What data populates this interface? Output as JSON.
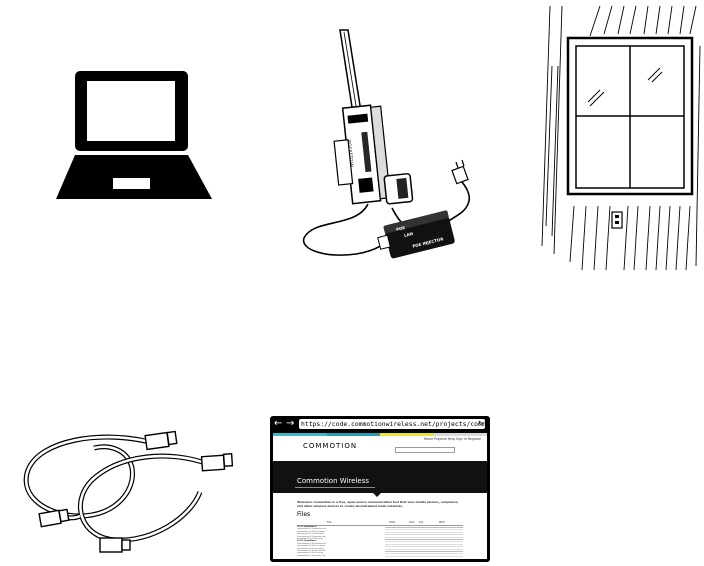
{
  "router": {
    "brand": "ROCKETDIAL",
    "poe_labels": [
      "POE",
      "LAN",
      "POE INJECTOR"
    ]
  },
  "browser": {
    "url": "https://code.commotionwireless.net/projects/commotion/files",
    "logo": "COMMOTION",
    "top_links": "Home  Projects  Help  Sign in  Register",
    "banner_title": "Commotion Wireless",
    "intro": "Welcome! Commotion is a free, open-source communication tool that uses mobile phones, computers, and other wireless devices to create decentralized mesh networks.",
    "section_title": "Files",
    "table_headers": [
      "File",
      "Date",
      "Size",
      "D/L",
      "MD5"
    ],
    "rows": [
      "0.2.0 (Installers)",
      "commotion-0.2-installer.exe",
      "commotion-0.2-linux.tar.gz",
      "commotion-0.2-mac.dmg",
      "commotion-0.2-openwrt.bin",
      "commotion-0.2-src.tar.gz",
      "0.3.0 (Installers)",
      "commotion-0.3-installer.exe",
      "commotion-0.3-linux.tar.gz",
      "commotion-0.3-mac.dmg",
      "commotion-0.3-openwrt.bin",
      "commotion-0.3-src.tar.gz",
      "commotion-0.3-sources.zip"
    ]
  }
}
